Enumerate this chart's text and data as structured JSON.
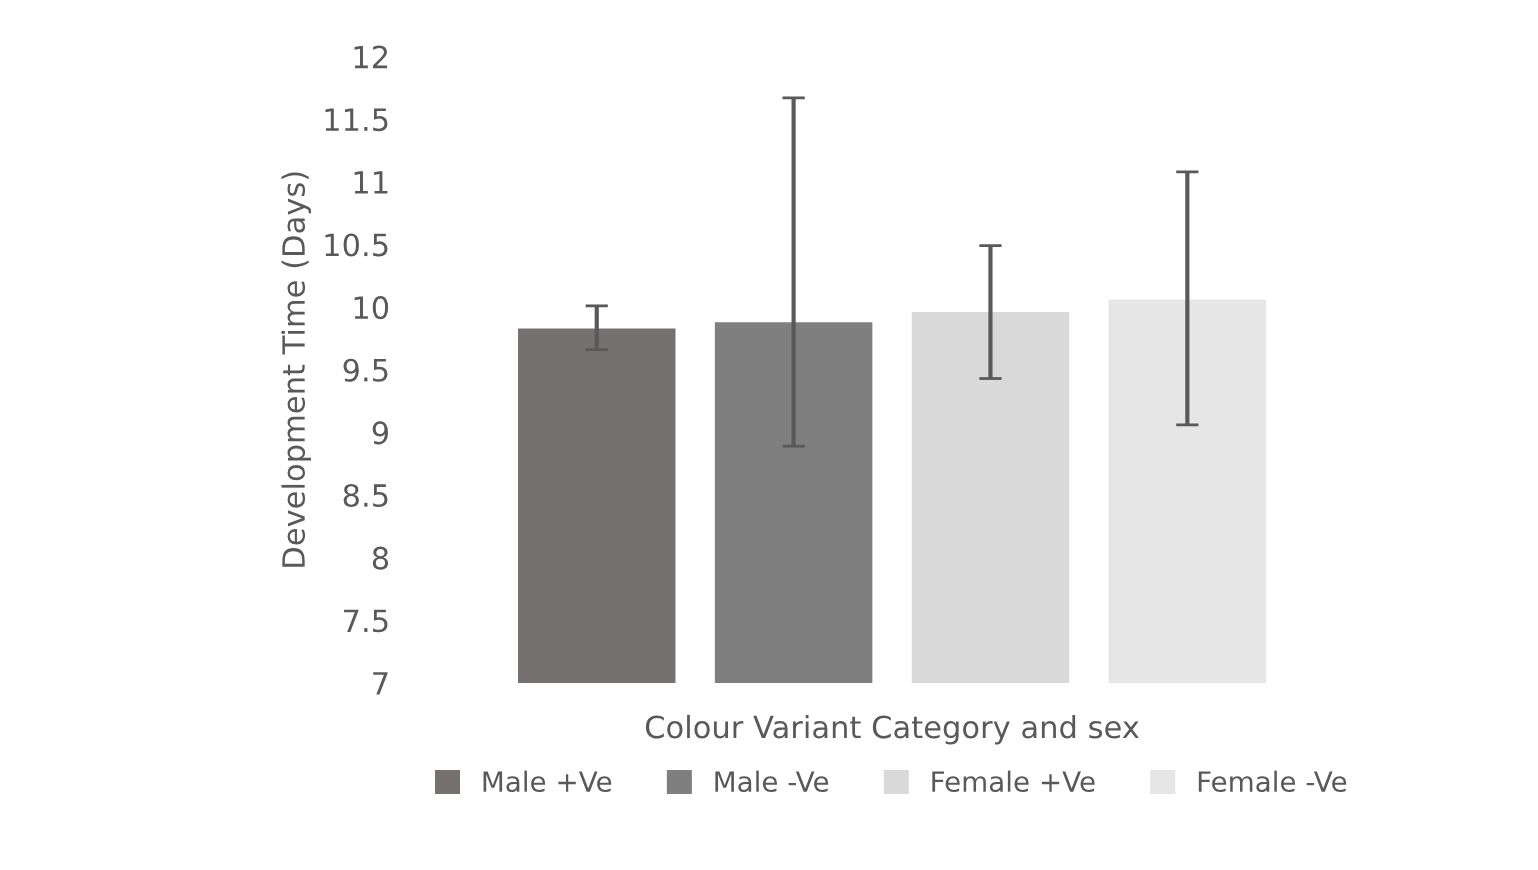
{
  "chart_data": {
    "type": "bar",
    "ylabel": "Development Time (Days)",
    "xlabel": "Colour Variant Category and sex",
    "categories": [
      null
    ],
    "series": [
      {
        "name": "Male +Ve",
        "color": "#767171",
        "values": [
          9.83
        ],
        "errors": [
          [
            9.66,
            10.01
          ]
        ]
      },
      {
        "name": "Male -Ve",
        "color": "#7f7f7f",
        "values": [
          9.88
        ],
        "errors": [
          [
            8.89,
            11.67
          ]
        ]
      },
      {
        "name": "Female +Ve",
        "color": "#d9d9d9",
        "values": [
          9.96
        ],
        "errors": [
          [
            9.43,
            10.49
          ]
        ]
      },
      {
        "name": "Female -Ve",
        "color": "#e7e6e6",
        "values": [
          10.06
        ],
        "errors": [
          [
            9.06,
            11.08
          ]
        ]
      }
    ],
    "ylim": [
      7,
      12
    ],
    "yticks": [
      7,
      7.5,
      8,
      8.5,
      9,
      9.5,
      10,
      10.5,
      11,
      11.5,
      12
    ],
    "grid": false,
    "legend": "bottom"
  }
}
